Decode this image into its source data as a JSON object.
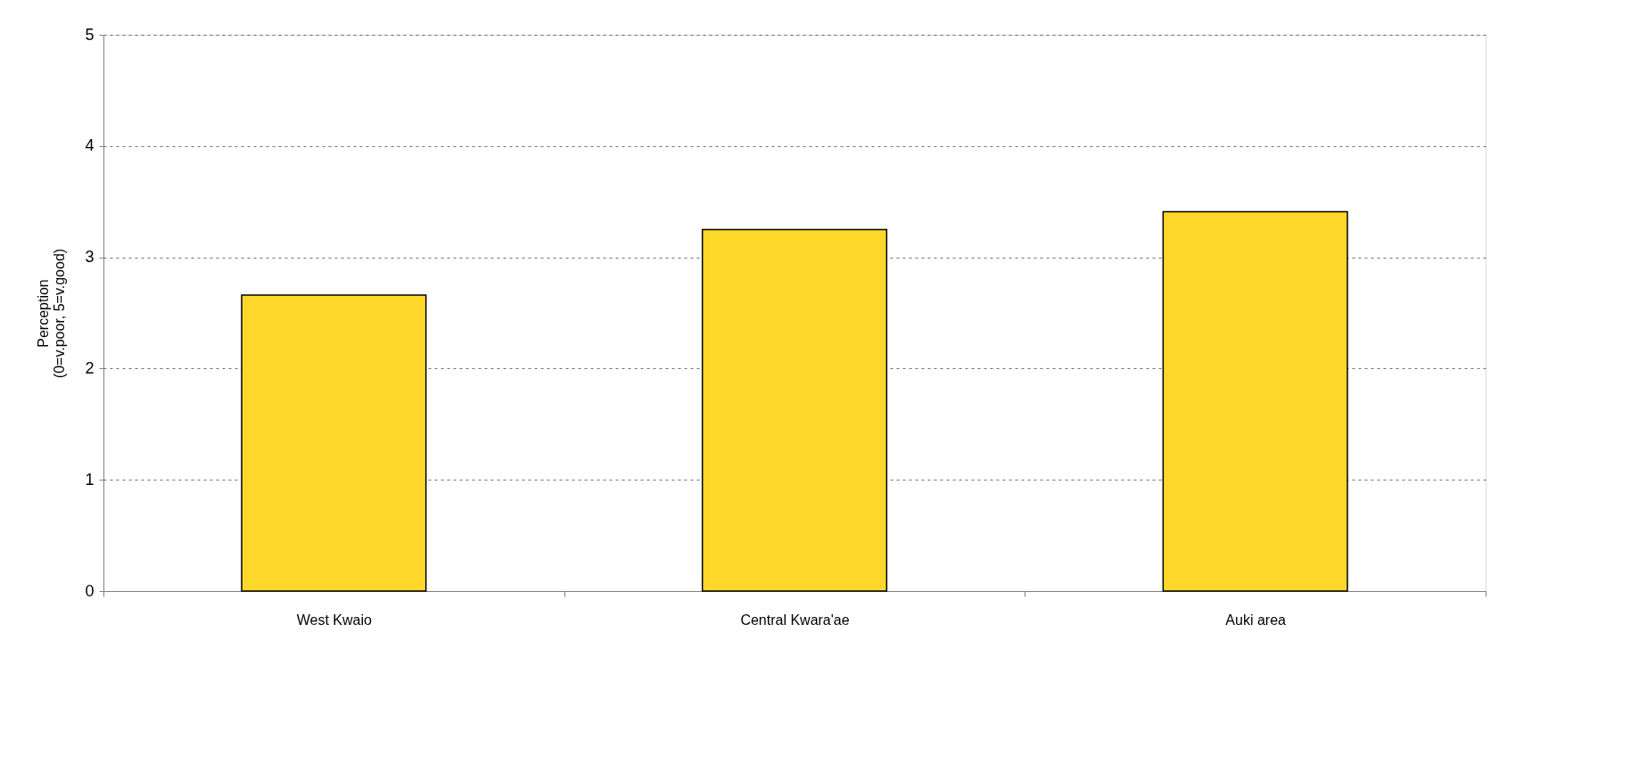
{
  "chart_data": {
    "type": "bar",
    "ylabel": "Perception\n(0=v.poor, 5=v.good)",
    "categories": [
      "West Kwaio",
      "Central Kwara'ae",
      "Auki area"
    ],
    "values": [
      2.66,
      3.25,
      3.41
    ],
    "color": "#fdd82a",
    "ylim": [
      0,
      5
    ],
    "yticks": [
      0,
      1,
      2,
      3,
      4,
      5
    ],
    "grid": "y",
    "legend": false
  }
}
